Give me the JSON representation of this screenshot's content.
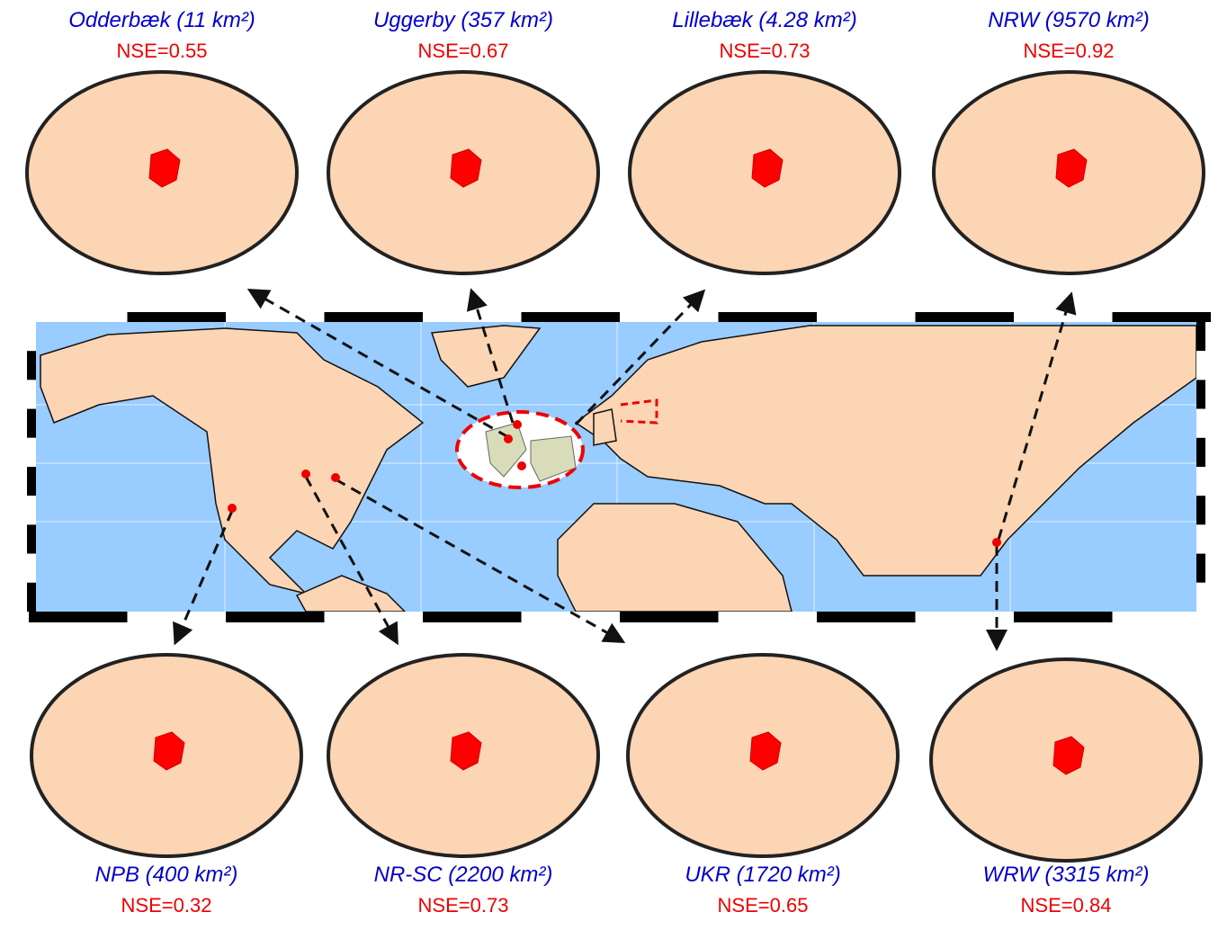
{
  "panels": [
    {
      "label": "Odderbæk (11 km²)",
      "nse": "NSE=0.55"
    },
    {
      "label": "Uggerby (357 km²)",
      "nse": "NSE=0.67"
    },
    {
      "label": "Lillebæk (4.28 km²)",
      "nse": "NSE=0.73"
    },
    {
      "label": "NRW (9570 km²)",
      "nse": "NSE=0.92"
    },
    {
      "label": "NPB (400 km²)",
      "nse": "NSE=0.32"
    },
    {
      "label": "NR-SC (2200 km²)",
      "nse": "NSE=0.73"
    },
    {
      "label": "UKR (1720 km²)",
      "nse": "NSE=0.65"
    },
    {
      "label": "WRW (3315 km²)",
      "nse": "NSE=0.84"
    }
  ]
}
